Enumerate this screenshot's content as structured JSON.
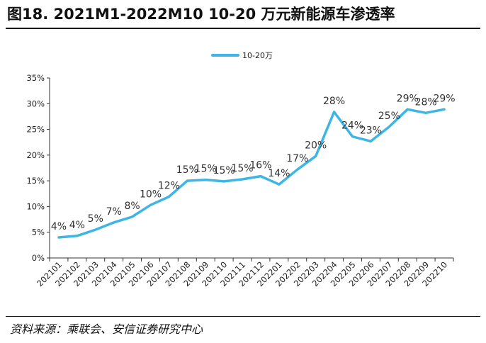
{
  "header": {
    "title": "图18. 2021M1-2022M10 10-20 万元新能源车渗透率"
  },
  "footer": {
    "source": "资料来源：乘联会、安信证券研究中心"
  },
  "chart_data": {
    "type": "line",
    "title": "2021M1-2022M10 10-20 万元新能源车渗透率",
    "xlabel": "",
    "ylabel": "",
    "ylim": [
      0,
      35
    ],
    "yticks": [
      0,
      5,
      10,
      15,
      20,
      25,
      30,
      35
    ],
    "ytick_labels": [
      "0%",
      "5%",
      "10%",
      "15%",
      "20%",
      "25%",
      "30%",
      "35%"
    ],
    "legend_position": "top-center",
    "categories": [
      "202101",
      "202102",
      "202103",
      "202104",
      "202105",
      "202106",
      "202107",
      "202108",
      "202109",
      "202110",
      "202111",
      "202112",
      "202201",
      "202202",
      "202203",
      "202204",
      "202205",
      "202206",
      "202207",
      "202208",
      "202209",
      "202210"
    ],
    "series": [
      {
        "name": "10-20万",
        "color": "#3db5e6",
        "values": [
          4.0,
          4.3,
          5.5,
          6.9,
          8.0,
          10.3,
          11.9,
          15.0,
          15.2,
          14.9,
          15.3,
          15.9,
          14.3,
          17.2,
          19.8,
          28.4,
          23.6,
          22.7,
          25.5,
          28.9,
          28.2,
          28.9
        ],
        "labels": [
          "4%",
          "4%",
          "5%",
          "7%",
          "8%",
          "10%",
          "12%",
          "15%",
          "15%",
          "15%",
          "15%",
          "16%",
          "14%",
          "17%",
          "20%",
          "28%",
          "24%",
          "23%",
          "25%",
          "29%",
          "28%",
          "29%"
        ]
      }
    ]
  }
}
